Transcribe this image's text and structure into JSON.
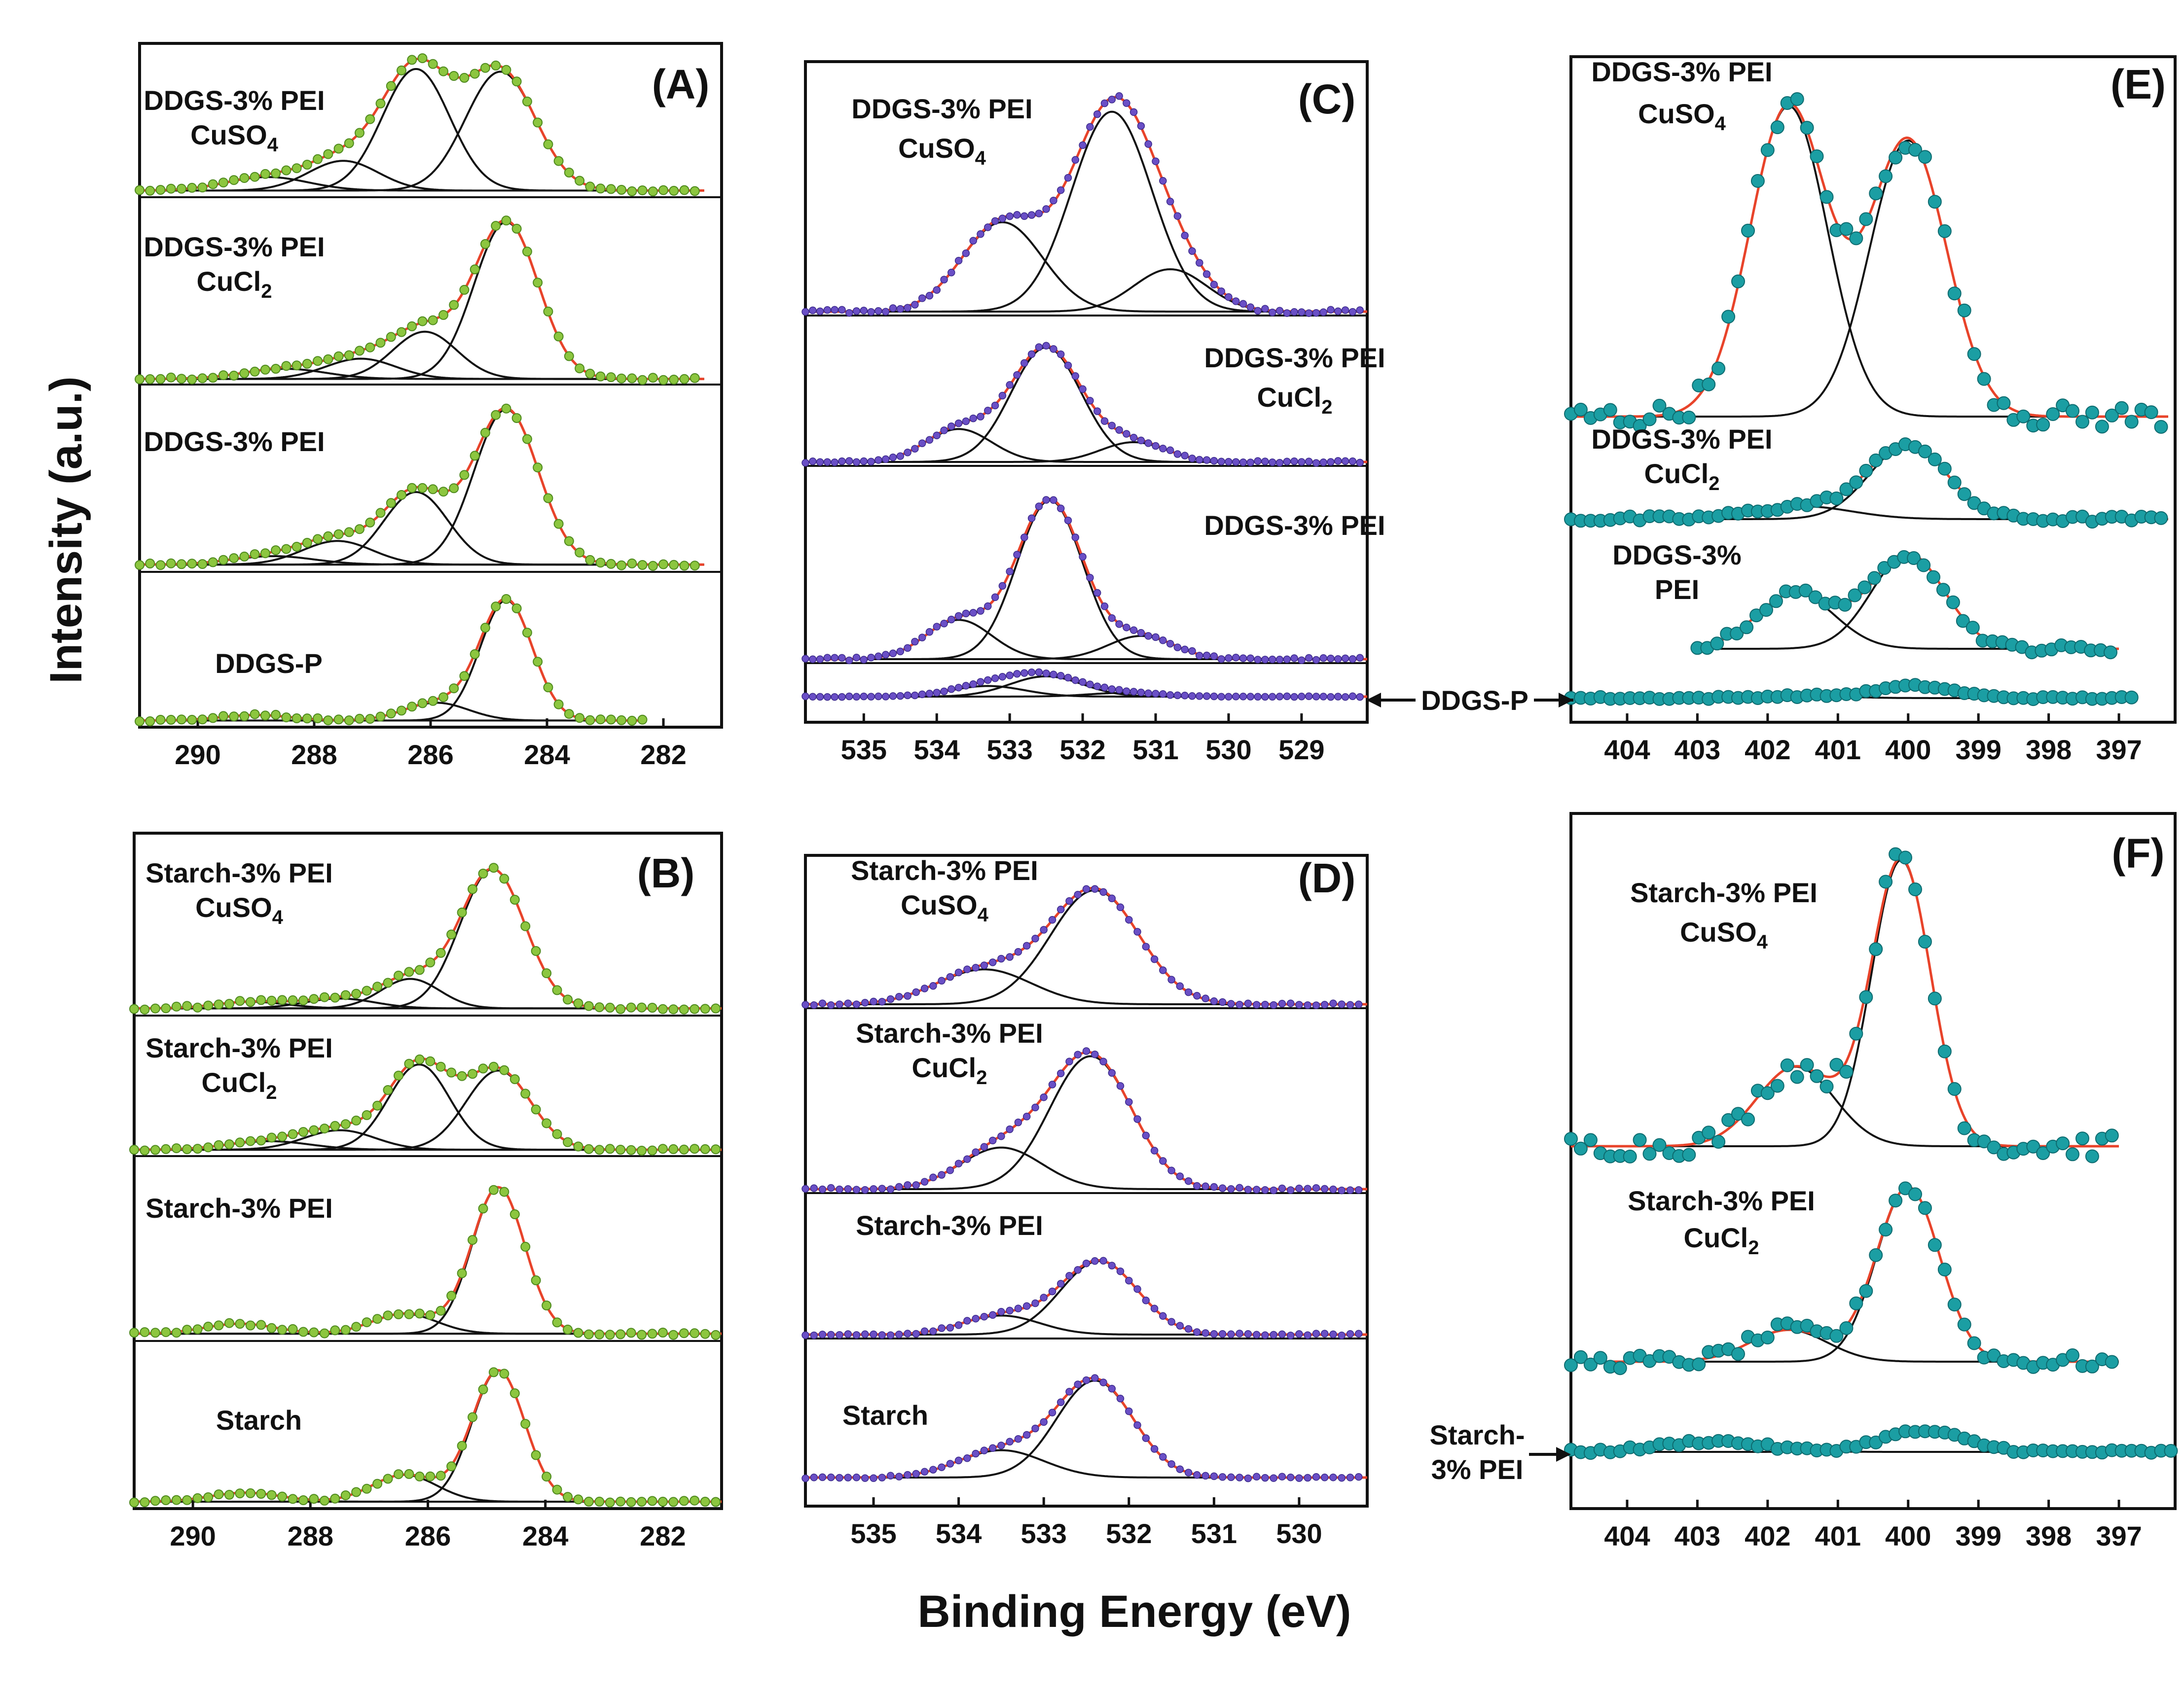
{
  "figure": {
    "y_axis_title": "Intensity (a.u.)",
    "x_axis_title": "Binding Energy (eV)",
    "ddgs_p_side_label": "DDGS-P",
    "starch_pei_side_label_line1": "Starch-",
    "starch_pei_side_label_line2": "3% PEI",
    "colors": {
      "envelope": "#e8432a",
      "component": "#111111",
      "points_c1s": "#8cc63f",
      "points_o1s": "#6a4fc6",
      "points_n1s": "#1b9ea3"
    }
  },
  "chart_data": [
    {
      "panel": "A",
      "type": "line",
      "title": "(A)",
      "xlabel": "Binding Energy (eV)",
      "ylabel": "Intensity (a.u.)",
      "xlim": [
        291,
        281
      ],
      "xticks": [
        290,
        288,
        286,
        284,
        282
      ],
      "point_style": "green",
      "series": [
        {
          "name": "DDGS-3% PEI CuSO4",
          "label": [
            "DDGS-3% PEI",
            "CuSO",
            "4"
          ],
          "x_range": [
            291,
            281.3
          ],
          "baseline": 0.02,
          "peaks": [
            {
              "center": 284.8,
              "height": 0.88,
              "sigma": 0.6
            },
            {
              "center": 286.25,
              "height": 0.9,
              "sigma": 0.58
            },
            {
              "center": 287.5,
              "height": 0.22,
              "sigma": 0.6
            },
            {
              "center": 288.8,
              "height": 0.1,
              "sigma": 0.7
            }
          ]
        },
        {
          "name": "DDGS-3% PEI CuCl2",
          "label": [
            "DDGS-3% PEI",
            "CuCl",
            "2"
          ],
          "x_range": [
            291,
            281.3
          ],
          "baseline": 0.01,
          "peaks": [
            {
              "center": 284.7,
              "height": 0.93,
              "sigma": 0.55
            },
            {
              "center": 286.1,
              "height": 0.28,
              "sigma": 0.55
            },
            {
              "center": 287.2,
              "height": 0.12,
              "sigma": 0.6
            },
            {
              "center": 288.5,
              "height": 0.06,
              "sigma": 0.7
            }
          ]
        },
        {
          "name": "DDGS-3% PEI",
          "label": [
            "DDGS-3% PEI"
          ],
          "x_range": [
            291,
            281.3
          ],
          "baseline": 0.02,
          "peaks": [
            {
              "center": 284.7,
              "height": 0.92,
              "sigma": 0.55
            },
            {
              "center": 286.25,
              "height": 0.43,
              "sigma": 0.55
            },
            {
              "center": 287.6,
              "height": 0.14,
              "sigma": 0.6
            },
            {
              "center": 288.7,
              "height": 0.05,
              "sigma": 0.7
            }
          ]
        },
        {
          "name": "DDGS-P",
          "label": [
            "DDGS-P"
          ],
          "x_range": [
            291,
            282.3
          ],
          "baseline": 0.02,
          "peaks": [
            {
              "center": 284.7,
              "height": 0.88,
              "sigma": 0.45
            },
            {
              "center": 285.9,
              "height": 0.13,
              "sigma": 0.55
            },
            {
              "center": 289.0,
              "height": 0.04,
              "sigma": 0.6
            }
          ]
        }
      ]
    },
    {
      "panel": "B",
      "type": "line",
      "title": "(B)",
      "xlabel": "Binding Energy (eV)",
      "ylabel": "Intensity (a.u.)",
      "xlim": [
        291,
        281
      ],
      "xticks": [
        290,
        288,
        286,
        284,
        282
      ],
      "point_style": "green",
      "series": [
        {
          "name": "Starch-3% PEI CuSO4",
          "label": [
            "Starch-3% PEI",
            "CuSO",
            "4"
          ],
          "x_range": [
            291,
            281
          ],
          "baseline": 0.02,
          "peaks": [
            {
              "center": 284.9,
              "height": 0.85,
              "sigma": 0.55
            },
            {
              "center": 286.3,
              "height": 0.18,
              "sigma": 0.5
            },
            {
              "center": 287.5,
              "height": 0.06,
              "sigma": 0.6
            },
            {
              "center": 289.0,
              "height": 0.04,
              "sigma": 0.6
            }
          ]
        },
        {
          "name": "Starch-3% PEI CuCl2",
          "label": [
            "Starch-3% PEI",
            "CuCl",
            "2"
          ],
          "x_range": [
            291,
            281
          ],
          "baseline": 0.02,
          "peaks": [
            {
              "center": 284.8,
              "height": 0.65,
              "sigma": 0.55
            },
            {
              "center": 286.15,
              "height": 0.7,
              "sigma": 0.52
            },
            {
              "center": 287.5,
              "height": 0.16,
              "sigma": 0.6
            },
            {
              "center": 288.7,
              "height": 0.07,
              "sigma": 0.7
            }
          ]
        },
        {
          "name": "Starch-3% PEI",
          "label": [
            "Starch-3% PEI"
          ],
          "x_range": [
            291,
            281
          ],
          "baseline": 0.02,
          "peaks": [
            {
              "center": 284.8,
              "height": 0.88,
              "sigma": 0.45
            },
            {
              "center": 286.4,
              "height": 0.12,
              "sigma": 0.55
            },
            {
              "center": 289.2,
              "height": 0.06,
              "sigma": 0.6
            }
          ]
        },
        {
          "name": "Starch",
          "label": [
            "Starch"
          ],
          "x_range": [
            291,
            281
          ],
          "baseline": 0.02,
          "peaks": [
            {
              "center": 284.8,
              "height": 0.88,
              "sigma": 0.45
            },
            {
              "center": 286.4,
              "height": 0.18,
              "sigma": 0.55
            },
            {
              "center": 289.1,
              "height": 0.06,
              "sigma": 0.6
            }
          ]
        }
      ]
    },
    {
      "panel": "C",
      "type": "line",
      "title": "(C)",
      "xlabel": "Binding Energy (eV)",
      "ylabel": "Intensity (a.u.)",
      "xlim": [
        535.8,
        528.1
      ],
      "xticks": [
        535,
        534,
        533,
        532,
        531,
        530,
        529
      ],
      "point_style": "purple",
      "series": [
        {
          "name": "DDGS-3% PEI CuSO4",
          "label": [
            "DDGS-3% PEI",
            "CuSO",
            "4"
          ],
          "x_range": [
            535.8,
            528.1
          ],
          "baseline": 0.0,
          "peaks": [
            {
              "center": 531.6,
              "height": 0.85,
              "sigma": 0.55
            },
            {
              "center": 533.1,
              "height": 0.38,
              "sigma": 0.55
            },
            {
              "center": 530.8,
              "height": 0.18,
              "sigma": 0.5
            }
          ]
        },
        {
          "name": "DDGS-3% PEI CuCl2",
          "label": [
            "DDGS-3% PEI",
            "CuCl",
            "2"
          ],
          "x_range": [
            535.8,
            528.1
          ],
          "baseline": 0.0,
          "peaks": [
            {
              "center": 532.5,
              "height": 0.87,
              "sigma": 0.48
            },
            {
              "center": 533.7,
              "height": 0.25,
              "sigma": 0.45
            },
            {
              "center": 531.3,
              "height": 0.15,
              "sigma": 0.45
            }
          ]
        },
        {
          "name": "DDGS-3% PEI",
          "label": [
            "DDGS-3% PEI"
          ],
          "x_range": [
            535.8,
            528.1
          ],
          "baseline": 0.0,
          "peaks": [
            {
              "center": 532.45,
              "height": 0.89,
              "sigma": 0.45
            },
            {
              "center": 533.7,
              "height": 0.22,
              "sigma": 0.45
            },
            {
              "center": 531.2,
              "height": 0.13,
              "sigma": 0.45
            }
          ]
        },
        {
          "name": "DDGS-P",
          "label": [],
          "x_range": [
            535.8,
            528.1
          ],
          "baseline": 0.0,
          "peaks": [
            {
              "center": 532.5,
              "height": 0.42,
              "sigma": 0.5
            },
            {
              "center": 533.3,
              "height": 0.22,
              "sigma": 0.5
            },
            {
              "center": 531.4,
              "height": 0.08,
              "sigma": 0.5
            }
          ]
        }
      ]
    },
    {
      "panel": "D",
      "type": "line",
      "title": "(D)",
      "xlabel": "Binding Energy (eV)",
      "ylabel": "Intensity (a.u.)",
      "xlim": [
        535.8,
        529.2
      ],
      "xticks": [
        535,
        534,
        533,
        532,
        531,
        530
      ],
      "point_style": "purple",
      "series": [
        {
          "name": "Starch-3% PEI CuSO4",
          "label": [
            "Starch-3% PEI",
            "CuSO",
            "4"
          ],
          "x_range": [
            535.8,
            529.2
          ],
          "baseline": 0.0,
          "peaks": [
            {
              "center": 532.4,
              "height": 0.85,
              "sigma": 0.52
            },
            {
              "center": 533.7,
              "height": 0.26,
              "sigma": 0.55
            }
          ]
        },
        {
          "name": "Starch-3% PEI CuCl2",
          "label": [
            "Starch-3% PEI",
            "CuCl",
            "2"
          ],
          "x_range": [
            535.8,
            529.2
          ],
          "baseline": 0.0,
          "peaks": [
            {
              "center": 532.45,
              "height": 0.8,
              "sigma": 0.48
            },
            {
              "center": 533.5,
              "height": 0.25,
              "sigma": 0.48
            }
          ]
        },
        {
          "name": "Starch-3% PEI",
          "label": [
            "Starch-3% PEI"
          ],
          "x_range": [
            535.8,
            529.2
          ],
          "baseline": 0.0,
          "peaks": [
            {
              "center": 532.35,
              "height": 0.58,
              "sigma": 0.45
            },
            {
              "center": 533.5,
              "height": 0.15,
              "sigma": 0.45
            }
          ]
        },
        {
          "name": "Starch",
          "label": [
            "Starch"
          ],
          "x_range": [
            535.8,
            529.2
          ],
          "baseline": 0.0,
          "peaks": [
            {
              "center": 532.4,
              "height": 0.78,
              "sigma": 0.45
            },
            {
              "center": 533.5,
              "height": 0.22,
              "sigma": 0.5
            }
          ]
        }
      ]
    },
    {
      "panel": "E",
      "type": "line",
      "title": "(E)",
      "xlabel": "Binding Energy (eV)",
      "ylabel": "Intensity (a.u.)",
      "xlim": [
        404.8,
        396.2
      ],
      "xticks": [
        404,
        403,
        402,
        401,
        400,
        399,
        398,
        397
      ],
      "point_style": "teal",
      "series": [
        {
          "name": "DDGS-3% PEI CuSO4",
          "label": [
            "DDGS-3% PEI",
            "CuSO",
            "4"
          ],
          "x_range": [
            404.8,
            396.3
          ],
          "baseline": 0.0,
          "peaks": [
            {
              "center": 401.7,
              "height": 0.9,
              "sigma": 0.55
            },
            {
              "center": 400.0,
              "height": 0.8,
              "sigma": 0.55
            }
          ]
        },
        {
          "name": "DDGS-3% PEI CuCl2",
          "label": [
            "DDGS-3% PEI",
            "CuCl",
            "2"
          ],
          "x_range": [
            404.8,
            396.3
          ],
          "baseline": 0.0,
          "peaks": [
            {
              "center": 400.0,
              "height": 0.87,
              "sigma": 0.55
            },
            {
              "center": 401.5,
              "height": 0.15,
              "sigma": 0.7
            }
          ]
        },
        {
          "name": "DDGS-3% PEI",
          "label": [
            "DDGS-3%",
            "PEI"
          ],
          "x_range": [
            403.0,
            397.0
          ],
          "baseline": 0.0,
          "peaks": [
            {
              "center": 400.0,
              "height": 0.85,
              "sigma": 0.52
            },
            {
              "center": 401.6,
              "height": 0.5,
              "sigma": 0.55
            }
          ]
        },
        {
          "name": "DDGS-P",
          "label": [],
          "x_range": [
            404.8,
            396.8
          ],
          "baseline": 0.0,
          "peaks": [
            {
              "center": 399.9,
              "height": 0.35,
              "sigma": 0.55
            },
            {
              "center": 401.5,
              "height": 0.06,
              "sigma": 0.6
            }
          ]
        }
      ]
    },
    {
      "panel": "F",
      "type": "line",
      "title": "(F)",
      "xlabel": "Binding Energy (eV)",
      "ylabel": "Intensity (a.u.)",
      "xlim": [
        404.8,
        396.2
      ],
      "xticks": [
        404,
        403,
        402,
        401,
        400,
        399,
        398,
        397
      ],
      "point_style": "teal",
      "series": [
        {
          "name": "Starch-3% PEI CuSO4",
          "label": [
            "Starch-3% PEI",
            "CuSO",
            "4"
          ],
          "x_range": [
            404.8,
            397.0
          ],
          "baseline": 0.0,
          "peaks": [
            {
              "center": 400.1,
              "height": 0.9,
              "sigma": 0.42
            },
            {
              "center": 401.6,
              "height": 0.25,
              "sigma": 0.55
            }
          ]
        },
        {
          "name": "Starch-3% PEI CuCl2",
          "label": [
            "Starch-3% PEI",
            "CuCl",
            "2"
          ],
          "x_range": [
            404.8,
            397.0
          ],
          "baseline": 0.0,
          "peaks": [
            {
              "center": 400.0,
              "height": 0.88,
              "sigma": 0.45
            },
            {
              "center": 401.7,
              "height": 0.16,
              "sigma": 0.55
            }
          ]
        },
        {
          "name": "Starch-3% PEI",
          "label": [],
          "x_range": [
            404.8,
            396.2
          ],
          "baseline": 0.0,
          "peaks": [
            {
              "center": 399.8,
              "height": 0.35,
              "sigma": 0.6
            },
            {
              "center": 402.8,
              "height": 0.18,
              "sigma": 0.7
            }
          ]
        }
      ]
    }
  ]
}
